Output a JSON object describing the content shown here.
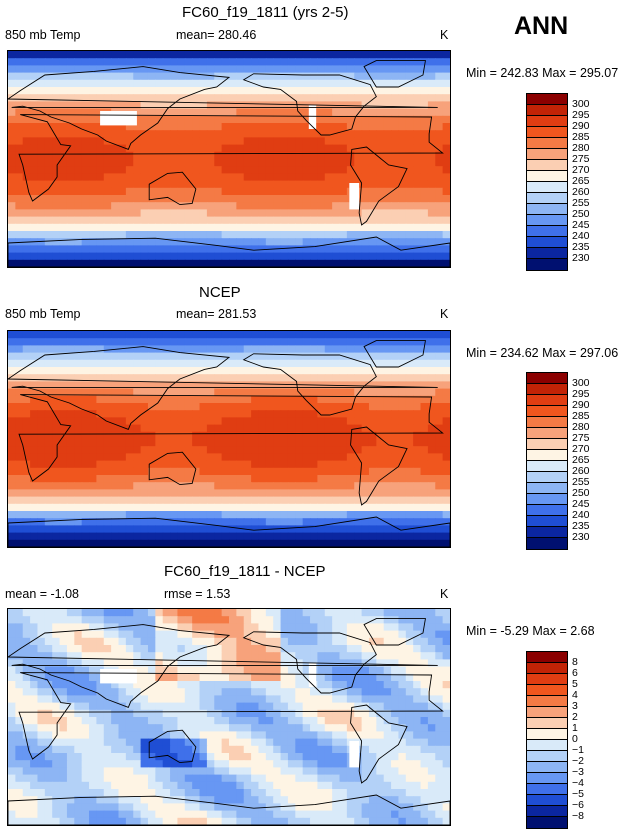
{
  "season_label": "ANN",
  "chart_data": [
    {
      "type": "heatmap",
      "title": "FC60_f19_1811 (yrs 2-5)",
      "variable": "850 mb Temp",
      "stat_text": "mean= 280.46",
      "units": "K",
      "range_text": "Min = 242.83 Max = 295.07",
      "mean": 280.46,
      "min": 242.83,
      "max": 295.07,
      "levels": [
        "300",
        "295",
        "290",
        "285",
        "280",
        "275",
        "270",
        "265",
        "260",
        "255",
        "250",
        "245",
        "240",
        "235",
        "230"
      ],
      "colors": [
        "#8b0000",
        "#c22306",
        "#e03d12",
        "#f0561e",
        "#f47a45",
        "#f7a27b",
        "#fbcfb3",
        "#fef4e4",
        "#d9eaf9",
        "#b3d1f7",
        "#8db5f4",
        "#6797f3",
        "#3f70ea",
        "#1f4ed4",
        "#0b26a0",
        "#001070"
      ],
      "map_style": "model"
    },
    {
      "type": "heatmap",
      "title": "NCEP",
      "variable": "850 mb Temp",
      "stat_text": "mean= 281.53",
      "units": "K",
      "range_text": "Min = 234.62 Max = 297.06",
      "mean": 281.53,
      "min": 234.62,
      "max": 297.06,
      "levels": [
        "300",
        "295",
        "290",
        "285",
        "280",
        "275",
        "270",
        "265",
        "260",
        "255",
        "250",
        "245",
        "240",
        "235",
        "230"
      ],
      "colors": [
        "#8b0000",
        "#c22306",
        "#e03d12",
        "#f0561e",
        "#f47a45",
        "#f7a27b",
        "#fbcfb3",
        "#fef4e4",
        "#d9eaf9",
        "#b3d1f7",
        "#8db5f4",
        "#6797f3",
        "#3f70ea",
        "#1f4ed4",
        "#0b26a0",
        "#001070"
      ],
      "map_style": "obs"
    },
    {
      "type": "heatmap",
      "title": "FC60_f19_1811 - NCEP",
      "stat_text": "mean =  -1.08",
      "rmse_text": "rmse =   1.53",
      "units": "K",
      "range_text": "Min =  -5.29 Max =   2.68",
      "mean": -1.08,
      "rmse": 1.53,
      "min": -5.29,
      "max": 2.68,
      "levels": [
        "8",
        "6",
        "5",
        "4",
        "3",
        "2",
        "1",
        "0",
        "−1",
        "−2",
        "−3",
        "−4",
        "−5",
        "−6",
        "−8"
      ],
      "colors": [
        "#8b0000",
        "#c22306",
        "#e03d12",
        "#f0561e",
        "#f47a45",
        "#f7a27b",
        "#fbcfb3",
        "#fef4e4",
        "#d9eaf9",
        "#b3d1f7",
        "#8db5f4",
        "#6797f3",
        "#3f70ea",
        "#1f4ed4",
        "#0b26a0",
        "#001070"
      ],
      "map_style": "diff"
    }
  ]
}
